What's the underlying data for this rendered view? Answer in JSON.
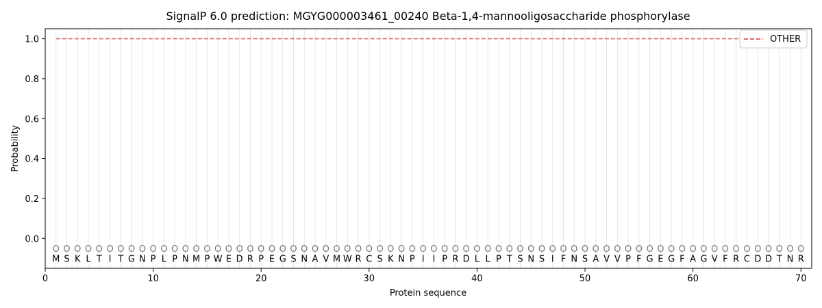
{
  "chart_data": {
    "type": "line",
    "title": "SignalP 6.0 prediction: MGYG000003461_00240 Beta-1,4-mannooligosaccharide phosphorylase",
    "xlabel": "Protein sequence",
    "ylabel": "Probability",
    "xlim": [
      0,
      71
    ],
    "ylim": [
      -0.15,
      1.05
    ],
    "xticks": [
      0,
      10,
      20,
      30,
      40,
      50,
      60,
      70
    ],
    "yticks": [
      0.0,
      0.2,
      0.4,
      0.6,
      0.8,
      1.0
    ],
    "ytick_labels": [
      "0.0",
      "0.2",
      "0.4",
      "0.6",
      "0.8",
      "1.0"
    ],
    "sequence": [
      "M",
      "S",
      "K",
      "L",
      "T",
      "I",
      "T",
      "G",
      "N",
      "P",
      "L",
      "P",
      "N",
      "M",
      "P",
      "W",
      "E",
      "D",
      "R",
      "P",
      "E",
      "G",
      "S",
      "N",
      "A",
      "V",
      "M",
      "W",
      "R",
      "C",
      "S",
      "K",
      "N",
      "P",
      "I",
      "I",
      "P",
      "R",
      "D",
      "L",
      "L",
      "P",
      "T",
      "S",
      "N",
      "S",
      "I",
      "F",
      "N",
      "S",
      "A",
      "V",
      "V",
      "P",
      "F",
      "G",
      "E",
      "G",
      "F",
      "A",
      "G",
      "V",
      "F",
      "R",
      "C",
      "D",
      "D",
      "T",
      "N",
      "R"
    ],
    "region_label": "O",
    "series": [
      {
        "name": "OTHER",
        "color": "#e06666",
        "style": "dashed",
        "x_start": 1,
        "x_end": 70,
        "value": 1.0
      }
    ],
    "grid": "vertical lines at each residue",
    "legend": "top-right"
  }
}
